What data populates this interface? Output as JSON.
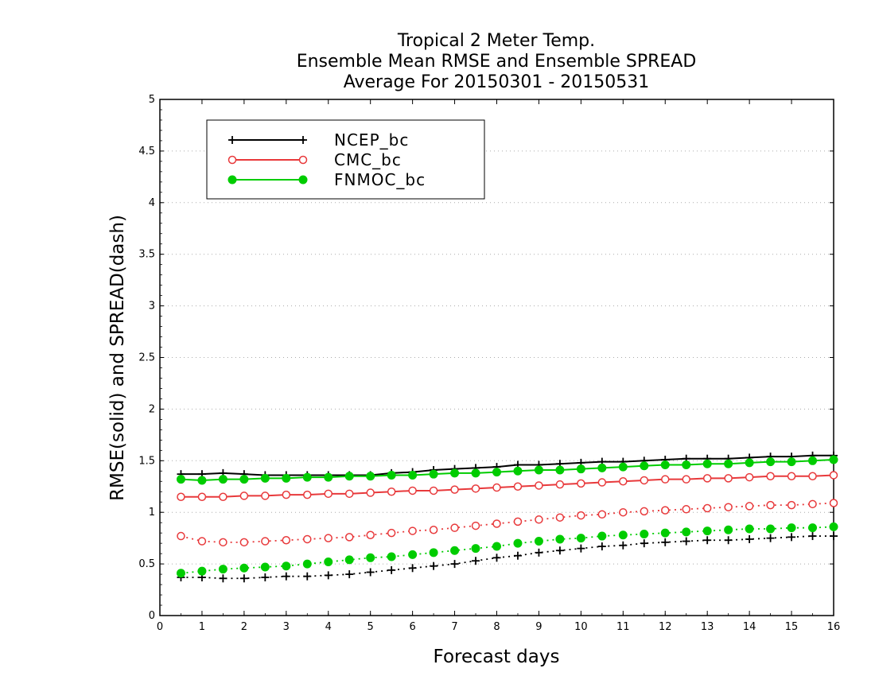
{
  "chart_data": {
    "type": "line",
    "title": [
      "Tropical 2 Meter Temp.",
      "Ensemble Mean RMSE and Ensemble SPREAD",
      "Average For 20150301 - 20150531"
    ],
    "xlabel": "Forecast days",
    "ylabel": "RMSE(solid)  and  SPREAD(dash)",
    "xlim": [
      0,
      16
    ],
    "ylim": [
      0,
      5
    ],
    "xticks": [
      "0",
      "1",
      "2",
      "3",
      "4",
      "5",
      "6",
      "7",
      "8",
      "9",
      "10",
      "11",
      "12",
      "13",
      "14",
      "15",
      "16"
    ],
    "yticks": [
      "0",
      "0.5",
      "1",
      "1.5",
      "2",
      "2.5",
      "3",
      "3.5",
      "4",
      "4.5",
      "5"
    ],
    "ytick_values": [
      0,
      0.5,
      1,
      1.5,
      2,
      2.5,
      3,
      3.5,
      4,
      4.5,
      5
    ],
    "grid": "horizontal-dotted",
    "legend_position": "top-left",
    "x": [
      0.5,
      1,
      1.5,
      2,
      2.5,
      3,
      3.5,
      4,
      4.5,
      5,
      5.5,
      6,
      6.5,
      7,
      7.5,
      8,
      8.5,
      9,
      9.5,
      10,
      10.5,
      11,
      11.5,
      12,
      12.5,
      13,
      13.5,
      14,
      14.5,
      15,
      15.5,
      16
    ],
    "series": [
      {
        "name": "NCEP_bc",
        "color": "#000000",
        "marker": "plus",
        "rmse": [
          1.37,
          1.37,
          1.38,
          1.37,
          1.36,
          1.36,
          1.36,
          1.36,
          1.36,
          1.36,
          1.38,
          1.39,
          1.41,
          1.42,
          1.43,
          1.44,
          1.46,
          1.46,
          1.47,
          1.48,
          1.49,
          1.49,
          1.5,
          1.51,
          1.52,
          1.52,
          1.52,
          1.53,
          1.54,
          1.54,
          1.55,
          1.55
        ],
        "spread": [
          0.37,
          0.37,
          0.36,
          0.36,
          0.37,
          0.38,
          0.38,
          0.39,
          0.4,
          0.42,
          0.44,
          0.46,
          0.48,
          0.5,
          0.53,
          0.56,
          0.58,
          0.61,
          0.63,
          0.65,
          0.67,
          0.68,
          0.7,
          0.71,
          0.72,
          0.73,
          0.73,
          0.74,
          0.75,
          0.76,
          0.77,
          0.77
        ]
      },
      {
        "name": "CMC_bc",
        "color": "#e8393b",
        "marker": "open-circle",
        "rmse": [
          1.15,
          1.15,
          1.15,
          1.16,
          1.16,
          1.17,
          1.17,
          1.18,
          1.18,
          1.19,
          1.2,
          1.21,
          1.21,
          1.22,
          1.23,
          1.24,
          1.25,
          1.26,
          1.27,
          1.28,
          1.29,
          1.3,
          1.31,
          1.32,
          1.32,
          1.33,
          1.33,
          1.34,
          1.35,
          1.35,
          1.35,
          1.36
        ],
        "spread": [
          0.77,
          0.72,
          0.71,
          0.71,
          0.72,
          0.73,
          0.74,
          0.75,
          0.76,
          0.78,
          0.8,
          0.82,
          0.83,
          0.85,
          0.87,
          0.89,
          0.91,
          0.93,
          0.95,
          0.97,
          0.98,
          1.0,
          1.01,
          1.02,
          1.03,
          1.04,
          1.05,
          1.06,
          1.07,
          1.07,
          1.08,
          1.09
        ]
      },
      {
        "name": "FNMOC_bc",
        "color": "#00cc00",
        "marker": "filled-circle",
        "rmse": [
          1.32,
          1.31,
          1.32,
          1.32,
          1.33,
          1.33,
          1.34,
          1.34,
          1.35,
          1.35,
          1.36,
          1.36,
          1.37,
          1.38,
          1.38,
          1.39,
          1.4,
          1.41,
          1.41,
          1.42,
          1.43,
          1.44,
          1.45,
          1.46,
          1.46,
          1.47,
          1.47,
          1.48,
          1.49,
          1.49,
          1.5,
          1.51
        ],
        "spread": [
          0.41,
          0.43,
          0.45,
          0.46,
          0.47,
          0.48,
          0.5,
          0.52,
          0.54,
          0.56,
          0.57,
          0.59,
          0.61,
          0.63,
          0.65,
          0.67,
          0.7,
          0.72,
          0.74,
          0.75,
          0.77,
          0.78,
          0.79,
          0.8,
          0.81,
          0.82,
          0.83,
          0.84,
          0.84,
          0.85,
          0.85,
          0.86
        ]
      }
    ]
  }
}
